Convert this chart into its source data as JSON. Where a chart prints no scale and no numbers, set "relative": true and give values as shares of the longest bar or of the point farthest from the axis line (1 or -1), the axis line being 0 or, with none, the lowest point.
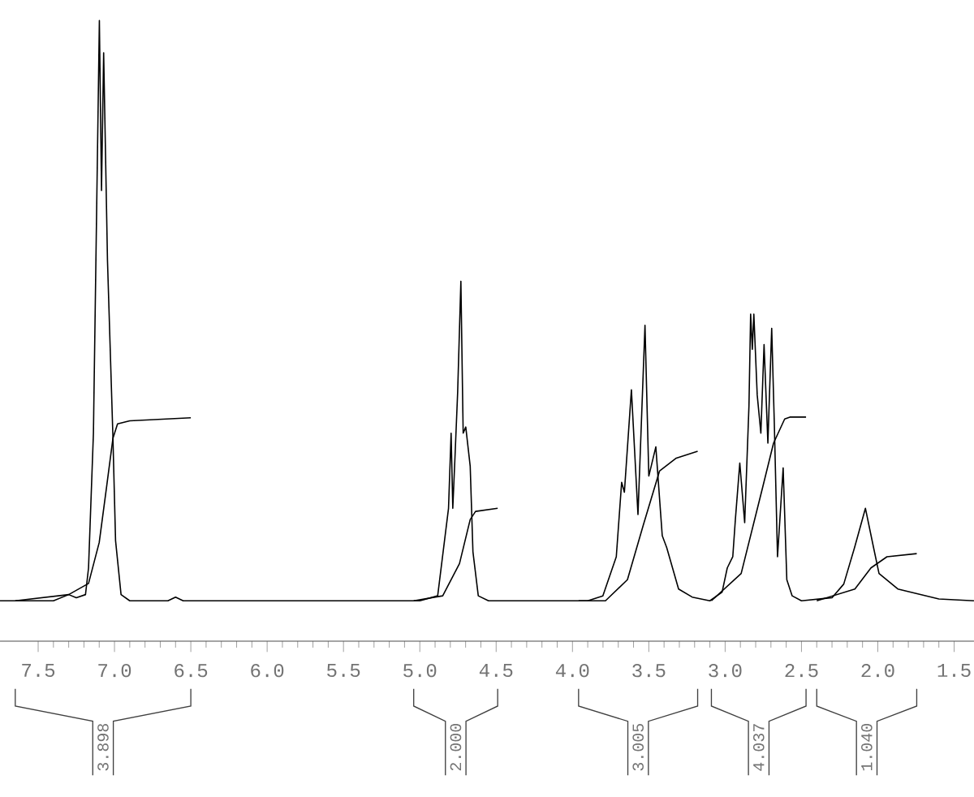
{
  "chart_data": {
    "type": "line",
    "relative": true,
    "xlim": [
      7.75,
      1.37
    ],
    "marker": "none",
    "line_style": "solid",
    "xticks": [
      {
        "value": 7.5,
        "label": "7.5"
      },
      {
        "value": 7.0,
        "label": "7.0"
      },
      {
        "value": 6.5,
        "label": "6.5"
      },
      {
        "value": 6.0,
        "label": "6.0"
      },
      {
        "value": 5.5,
        "label": "5.5"
      },
      {
        "value": 5.0,
        "label": "5.0"
      },
      {
        "value": 4.5,
        "label": "4.5"
      },
      {
        "value": 4.0,
        "label": "4.0"
      },
      {
        "value": 3.5,
        "label": "3.5"
      },
      {
        "value": 3.0,
        "label": "3.0"
      },
      {
        "value": 2.5,
        "label": "2.5"
      },
      {
        "value": 2.0,
        "label": "2.0"
      },
      {
        "value": 1.5,
        "label": "1.5"
      }
    ],
    "series": [
      {
        "color": "#000000",
        "x": [
          7.75,
          7.4,
          7.3,
          7.25,
          7.19,
          7.17,
          7.138,
          7.099,
          7.085,
          7.071,
          7.046,
          7.011,
          6.993,
          6.957,
          6.9,
          6.65,
          6.6,
          6.55,
          5.0,
          4.883,
          4.812,
          4.795,
          4.784,
          4.769,
          4.752,
          4.731,
          4.716,
          4.699,
          4.67,
          4.652,
          4.617,
          4.55,
          3.9,
          3.801,
          3.713,
          3.678,
          3.66,
          3.614,
          3.571,
          3.525,
          3.5,
          3.454,
          3.412,
          3.383,
          3.305,
          3.216,
          3.1,
          3.02,
          2.986,
          2.95,
          2.933,
          2.904,
          2.872,
          2.844,
          2.833,
          2.822,
          2.812,
          2.79,
          2.766,
          2.745,
          2.72,
          2.695,
          2.678,
          2.657,
          2.62,
          2.596,
          2.561,
          2.5,
          2.3,
          2.223,
          2.152,
          2.081,
          2.028,
          1.992,
          1.869,
          1.6,
          1.37
        ],
        "values": [
          0.065,
          0.065,
          0.075,
          0.07,
          0.075,
          0.118,
          0.335,
          1.0,
          0.726,
          0.948,
          0.614,
          0.335,
          0.162,
          0.075,
          0.065,
          0.065,
          0.071,
          0.065,
          0.065,
          0.073,
          0.214,
          0.335,
          0.214,
          0.3,
          0.402,
          0.58,
          0.335,
          0.345,
          0.282,
          0.144,
          0.073,
          0.065,
          0.065,
          0.073,
          0.136,
          0.256,
          0.24,
          0.405,
          0.204,
          0.509,
          0.266,
          0.313,
          0.17,
          0.151,
          0.084,
          0.071,
          0.065,
          0.079,
          0.118,
          0.136,
          0.196,
          0.287,
          0.191,
          0.379,
          0.527,
          0.47,
          0.527,
          0.397,
          0.335,
          0.478,
          0.319,
          0.504,
          0.352,
          0.136,
          0.279,
          0.099,
          0.073,
          0.065,
          0.07,
          0.092,
          0.151,
          0.214,
          0.151,
          0.109,
          0.084,
          0.068,
          0.065
        ]
      },
      {
        "color": "#000000",
        "x": [
          7.65,
          7.3,
          7.17,
          7.1,
          7.05,
          7.01,
          6.98,
          6.9,
          6.5
        ],
        "values": [
          0.065,
          0.075,
          0.093,
          0.159,
          0.252,
          0.327,
          0.35,
          0.355,
          0.36
        ]
      },
      {
        "color": "#000000",
        "x": [
          5.04,
          4.85,
          4.74,
          4.67,
          4.635,
          4.49
        ],
        "values": [
          0.065,
          0.073,
          0.125,
          0.196,
          0.209,
          0.214
        ]
      },
      {
        "color": "#000000",
        "x": [
          3.96,
          3.784,
          3.64,
          3.535,
          3.43,
          3.32,
          3.18
        ],
        "values": [
          0.065,
          0.065,
          0.099,
          0.188,
          0.274,
          0.295,
          0.306
        ]
      },
      {
        "color": "#000000",
        "x": [
          3.09,
          2.895,
          2.753,
          2.683,
          2.61,
          2.576,
          2.47
        ],
        "values": [
          0.065,
          0.109,
          0.249,
          0.319,
          0.358,
          0.361,
          0.361
        ]
      },
      {
        "color": "#000000",
        "x": [
          2.4,
          2.15,
          2.045,
          1.94,
          1.745
        ],
        "values": [
          0.065,
          0.084,
          0.118,
          0.136,
          0.141
        ]
      }
    ],
    "annotations": [
      "3.898",
      "2.000",
      "3.005",
      "4.037",
      "1.040"
    ]
  }
}
